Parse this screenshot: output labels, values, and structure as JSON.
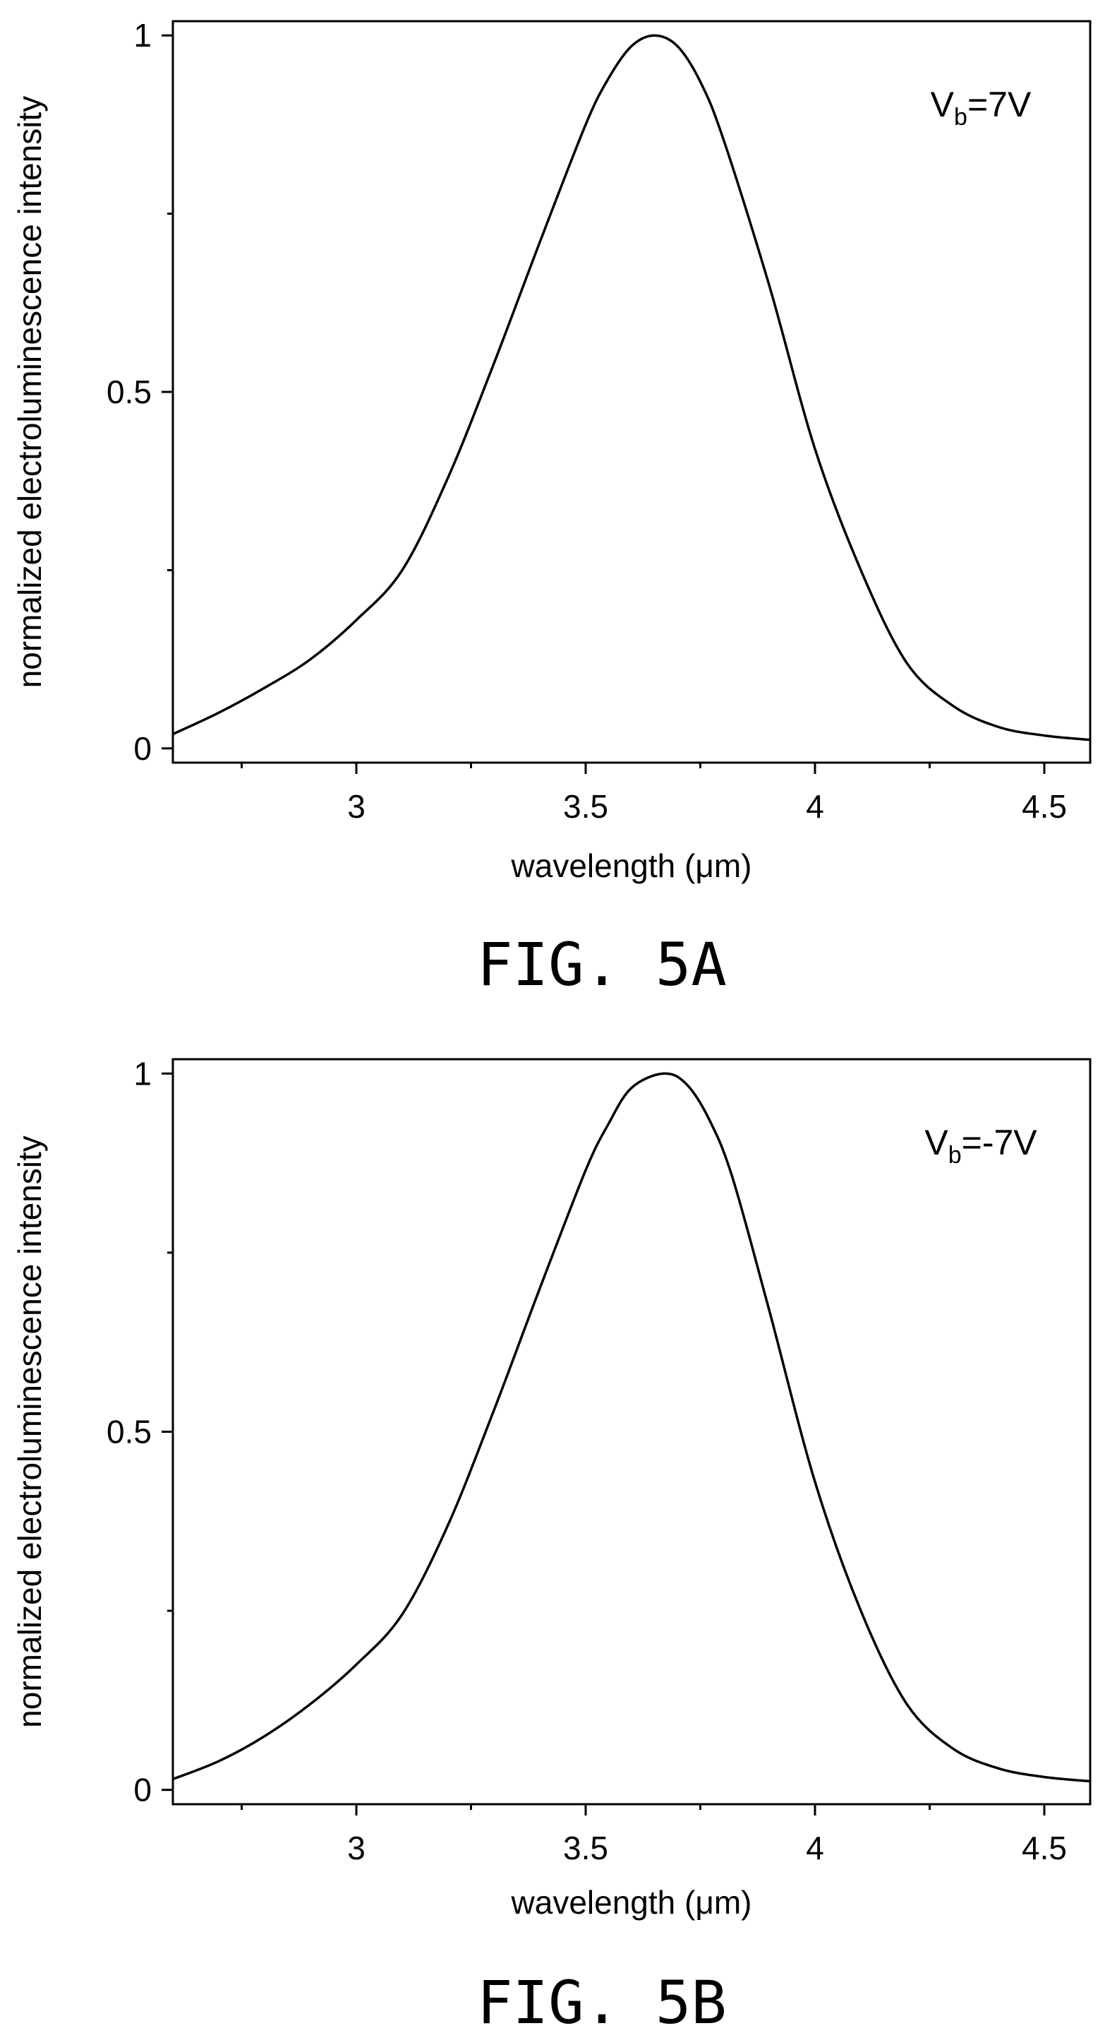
{
  "chart_data": [
    {
      "type": "line",
      "caption": "FIG. 5A",
      "xlabel": "wavelength (μm)",
      "ylabel": "normalized electroluminescence intensity",
      "xlim": [
        2.6,
        4.6
      ],
      "ylim": [
        -0.02,
        1.02
      ],
      "xticks": [
        3,
        3.5,
        4,
        4.5
      ],
      "xtick_labels": [
        "3",
        "3.5",
        "4",
        "4.5"
      ],
      "x_minor_ticks": [
        2.75,
        3.25,
        3.75,
        4.25
      ],
      "yticks": [
        0,
        0.5,
        1
      ],
      "ytick_labels": [
        "0",
        "0.5",
        "1"
      ],
      "y_minor_ticks": [
        0.25,
        0.75
      ],
      "grid": false,
      "annotation": {
        "base": "V",
        "subscript": "b",
        "suffix": "=7V",
        "position": "top-right"
      },
      "series": [
        {
          "x": [
            2.6,
            2.7,
            2.8,
            2.9,
            3.0,
            3.1,
            3.2,
            3.3,
            3.4,
            3.5,
            3.55,
            3.6,
            3.65,
            3.7,
            3.75,
            3.8,
            3.9,
            4.0,
            4.1,
            4.2,
            4.3,
            4.4,
            4.5,
            4.6
          ],
          "y": [
            0.02,
            0.05,
            0.085,
            0.125,
            0.18,
            0.25,
            0.38,
            0.54,
            0.71,
            0.875,
            0.94,
            0.985,
            1.0,
            0.985,
            0.935,
            0.855,
            0.65,
            0.42,
            0.25,
            0.12,
            0.06,
            0.03,
            0.018,
            0.012
          ]
        }
      ]
    },
    {
      "type": "line",
      "caption": "FIG. 5B",
      "xlabel": "wavelength (μm)",
      "ylabel": "normalized electroluminescence intensity",
      "xlim": [
        2.6,
        4.6
      ],
      "ylim": [
        -0.02,
        1.02
      ],
      "xticks": [
        3,
        3.5,
        4,
        4.5
      ],
      "xtick_labels": [
        "3",
        "3.5",
        "4",
        "4.5"
      ],
      "x_minor_ticks": [
        2.75,
        3.25,
        3.75,
        4.25
      ],
      "yticks": [
        0,
        0.5,
        1
      ],
      "ytick_labels": [
        "0",
        "0.5",
        "1"
      ],
      "y_minor_ticks": [
        0.25,
        0.75
      ],
      "grid": false,
      "annotation": {
        "base": "V",
        "subscript": "b",
        "suffix": "=-7V",
        "position": "top-right"
      },
      "series": [
        {
          "x": [
            2.6,
            2.7,
            2.8,
            2.9,
            3.0,
            3.1,
            3.2,
            3.3,
            3.4,
            3.5,
            3.55,
            3.6,
            3.67,
            3.72,
            3.77,
            3.82,
            3.9,
            4.0,
            4.1,
            4.2,
            4.3,
            4.4,
            4.5,
            4.6
          ],
          "y": [
            0.015,
            0.04,
            0.075,
            0.12,
            0.175,
            0.245,
            0.37,
            0.53,
            0.7,
            0.865,
            0.93,
            0.98,
            1.0,
            0.985,
            0.935,
            0.855,
            0.67,
            0.43,
            0.25,
            0.12,
            0.058,
            0.03,
            0.018,
            0.012
          ]
        }
      ]
    }
  ]
}
